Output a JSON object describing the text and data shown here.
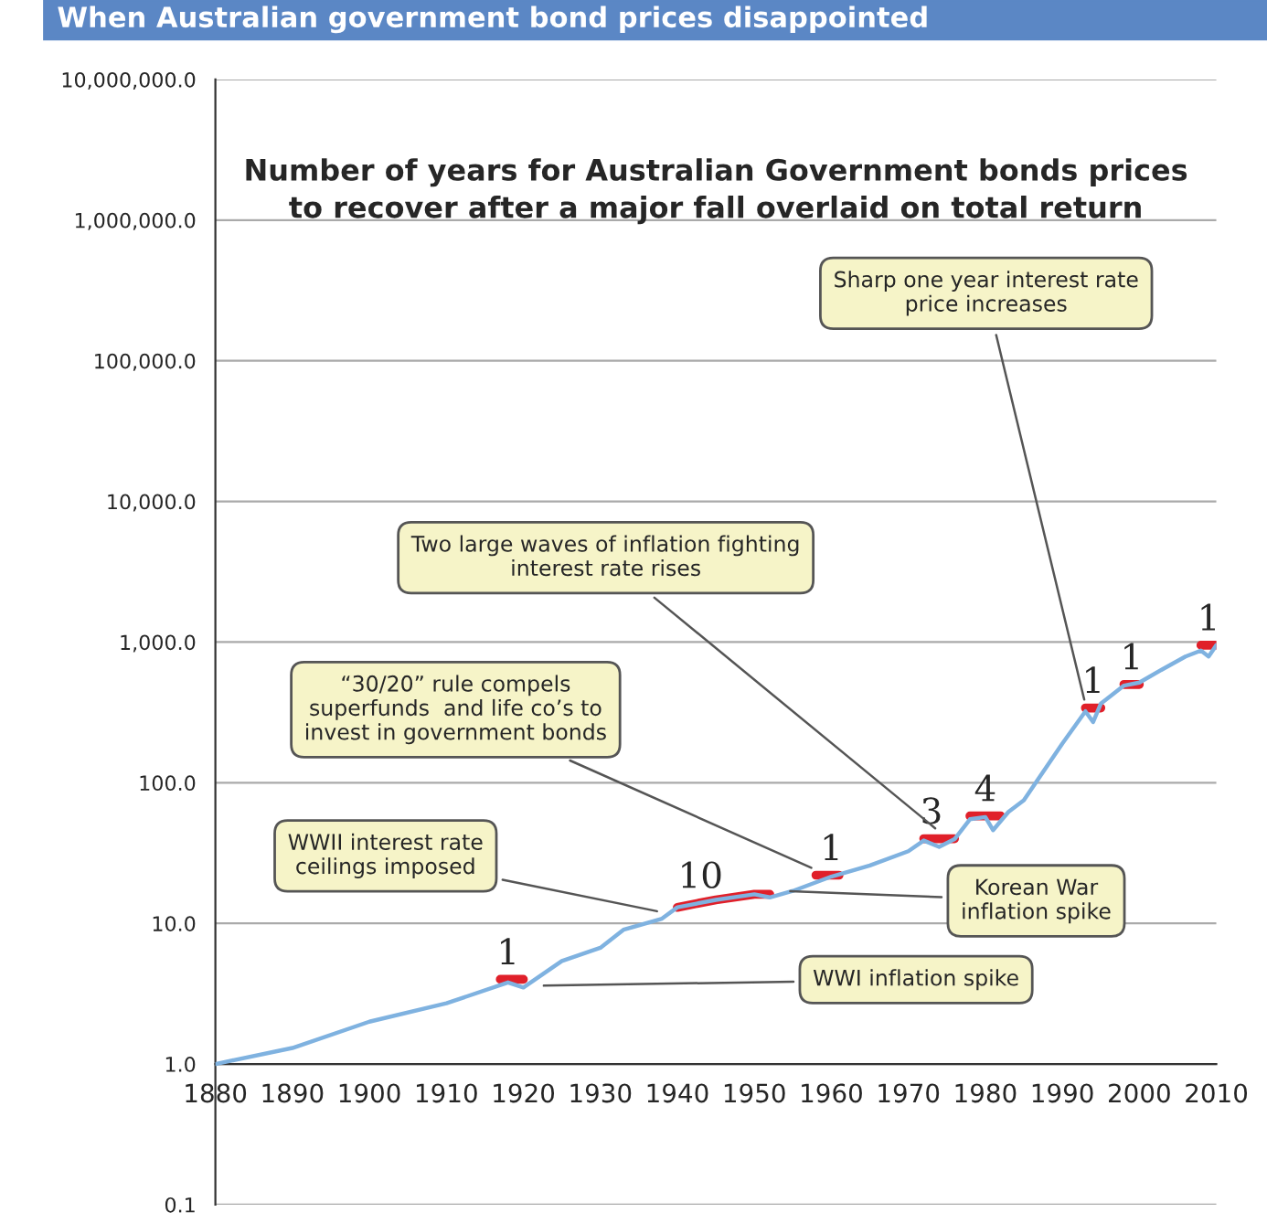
{
  "chart_data": {
    "type": "line",
    "title": "When Australian government bond prices disappointed",
    "subtitle": "Number of years for Australian Government bonds prices\nto recover after a major fall overlaid on total return",
    "series": [
      {
        "color": "#7fb2e0",
        "x": [
          1880,
          1890,
          1900,
          1910,
          1918,
          1920,
          1925,
          1930,
          1933,
          1938,
          1940,
          1945,
          1950,
          1952,
          1955,
          1960,
          1965,
          1970,
          1972,
          1974,
          1976,
          1978,
          1980,
          1981,
          1983,
          1985,
          1990,
          1993,
          1994,
          1995,
          1998,
          2000,
          2003,
          2006,
          2008,
          2009,
          2010
        ],
        "values": [
          1.0,
          1.3,
          2.0,
          2.7,
          3.8,
          3.5,
          5.4,
          6.7,
          9,
          10.8,
          13,
          14.7,
          16.1,
          15.3,
          17,
          21.5,
          25.8,
          32.6,
          38.8,
          35,
          39.7,
          55,
          57,
          46,
          62,
          75,
          190,
          322,
          270,
          365,
          490,
          515,
          640,
          790,
          870,
          790,
          950
        ]
      },
      {
        "color": "#e0202a",
        "x": [
          1917,
          1920,
          null,
          1940,
          1945,
          1950,
          1952,
          null,
          1958,
          1961,
          null,
          1972,
          1976,
          null,
          1978,
          1982,
          null,
          1993,
          1995,
          null,
          1998,
          2000,
          null,
          2008,
          2010
        ],
        "values": [
          4.0,
          4.0,
          null,
          13,
          14.7,
          16.1,
          16.1,
          null,
          22,
          22,
          null,
          40,
          40,
          null,
          58,
          58,
          null,
          340,
          340,
          null,
          500,
          500,
          null,
          950,
          950
        ]
      }
    ],
    "xlim": [
      1880,
      2010
    ],
    "xticks": [
      1880,
      1890,
      1900,
      1910,
      1920,
      1930,
      1940,
      1950,
      1960,
      1970,
      1980,
      1990,
      2000,
      2010
    ],
    "log": true,
    "ylim": [
      0.1,
      10000000
    ],
    "yticks": [
      {
        "value": 0.1,
        "label": "0.1"
      },
      {
        "value": 1,
        "label": "1.0"
      },
      {
        "value": 10,
        "label": "10.0"
      },
      {
        "value": 100,
        "label": "100.0"
      },
      {
        "value": 1000,
        "label": "1,000.0"
      },
      {
        "value": 10000,
        "label": "10,000.0"
      },
      {
        "value": 100000,
        "label": "100,000.0"
      },
      {
        "value": 1000000,
        "label": "1,000,000.0"
      },
      {
        "value": 10000000,
        "label": "10,000,000.0"
      }
    ],
    "grid": "y",
    "marker": "none",
    "line_style": "solid",
    "annotations": [
      {
        "text": "1",
        "x": 1918,
        "y": 4.0
      },
      {
        "text": "10",
        "x": 1943,
        "y": 14
      },
      {
        "text": "1",
        "x": 1960,
        "y": 22
      },
      {
        "text": "3",
        "x": 1973,
        "y": 40
      },
      {
        "text": "4",
        "x": 1980,
        "y": 58
      },
      {
        "text": "1",
        "x": 1994,
        "y": 340
      },
      {
        "text": "1",
        "x": 1999,
        "y": 500
      },
      {
        "text": "1",
        "x": 2009,
        "y": 950
      },
      {
        "text": "WWI inflation spike",
        "x": 1922,
        "y": 3.6
      },
      {
        "text": "WWII interest rate\nceilings imposed",
        "x": 1938,
        "y": 12
      },
      {
        "text": "“30/20” rule compels\nsuperfunds  and life co’s to\ninvest in government bonds",
        "x": 1958,
        "y": 24
      },
      {
        "text": "Korean War\ninflation spike",
        "x": 1954,
        "y": 17
      },
      {
        "text": "Two large waves of inflation fighting\ninterest rate rises",
        "x": 1974,
        "y": 45
      },
      {
        "text": "Sharp one year interest rate\nprice increases",
        "x": 1993,
        "y": 360
      }
    ]
  }
}
